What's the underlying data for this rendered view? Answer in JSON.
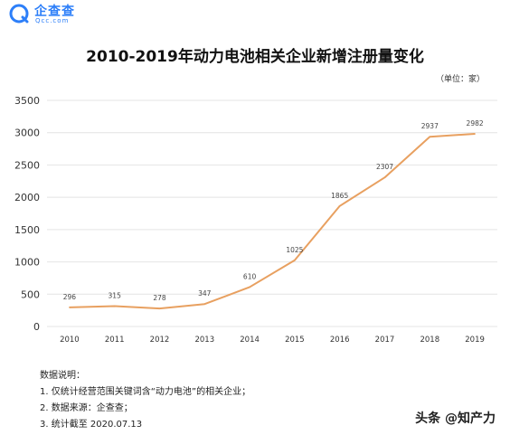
{
  "logo": {
    "cn": "企查查",
    "en": "Qcc.com",
    "color": "#2d7ff9"
  },
  "header": {
    "title": "2010-2019年动力电池相关企业新增注册量变化",
    "unit": "（单位：家）"
  },
  "notes": [
    "数据说明：",
    "1. 仅统计经营范围关键词含“动力电池”的相关企业；",
    "2. 数据来源：企查查；",
    "3. 统计截至 2020.07.13"
  ],
  "watermark": "头条 @知产力",
  "chart_data": {
    "type": "line",
    "title": "2010-2019年动力电池相关企业新增注册量变化",
    "unit": "（单位：家）",
    "categories": [
      "2010",
      "2011",
      "2012",
      "2013",
      "2014",
      "2015",
      "2016",
      "2017",
      "2018",
      "2019"
    ],
    "values": [
      296,
      315,
      278,
      347,
      610,
      1025,
      1865,
      2307,
      2937,
      2982
    ],
    "yticks": [
      0,
      500,
      1000,
      1500,
      2000,
      2500,
      3000,
      3500
    ],
    "ylim": [
      0,
      3500
    ],
    "grid": true,
    "line_color": "#e8a060",
    "grid_color": "#e4e4e4"
  }
}
